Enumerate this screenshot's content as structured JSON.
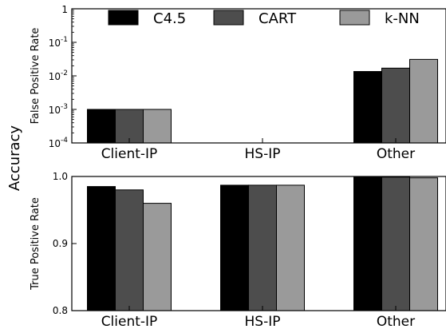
{
  "figure": {
    "ylabel": "Accuracy"
  },
  "legend": {
    "placement": "top-right",
    "entries": [
      {
        "label": "C4.5",
        "color": "#000000"
      },
      {
        "label": "CART",
        "color": "#4d4d4d"
      },
      {
        "label": "k-NN",
        "color": "#9a9a9a"
      }
    ]
  },
  "chart_data": [
    {
      "type": "bar",
      "scale": "log",
      "title": "",
      "xlabel": "",
      "ylabel": "False Positive Rate",
      "ylim": [
        0.0001,
        1
      ],
      "grid": false,
      "categories": [
        "Client-IP",
        "HS-IP",
        "Other"
      ],
      "yticks": [
        {
          "value": 0.0001,
          "base": "10",
          "exp": "-4"
        },
        {
          "value": 0.001,
          "base": "10",
          "exp": "-3"
        },
        {
          "value": 0.01,
          "base": "10",
          "exp": "-2"
        },
        {
          "value": 0.1,
          "base": "10",
          "exp": "-1"
        },
        {
          "value": 1,
          "base": "1",
          "exp": ""
        }
      ],
      "series": [
        {
          "name": "C4.5",
          "color": "#000000",
          "values": [
            0.001,
            null,
            0.0135
          ]
        },
        {
          "name": "CART",
          "color": "#4d4d4d",
          "values": [
            0.001,
            null,
            0.017
          ]
        },
        {
          "name": "k-NN",
          "color": "#9a9a9a",
          "values": [
            0.001,
            null,
            0.031
          ]
        }
      ]
    },
    {
      "type": "bar",
      "scale": "linear",
      "title": "",
      "xlabel": "",
      "ylabel": "True Positive Rate",
      "ylim": [
        0.8,
        1.0
      ],
      "grid": false,
      "categories": [
        "Client-IP",
        "HS-IP",
        "Other"
      ],
      "yticks": [
        {
          "value": 0.8,
          "label": "0.8"
        },
        {
          "value": 0.9,
          "label": "0.9"
        },
        {
          "value": 1.0,
          "label": "1.0"
        }
      ],
      "series": [
        {
          "name": "C4.5",
          "color": "#000000",
          "values": [
            0.985,
            0.987,
            0.999
          ]
        },
        {
          "name": "CART",
          "color": "#4d4d4d",
          "values": [
            0.98,
            0.987,
            0.999
          ]
        },
        {
          "name": "k-NN",
          "color": "#9a9a9a",
          "values": [
            0.96,
            0.987,
            0.998
          ]
        }
      ]
    }
  ]
}
